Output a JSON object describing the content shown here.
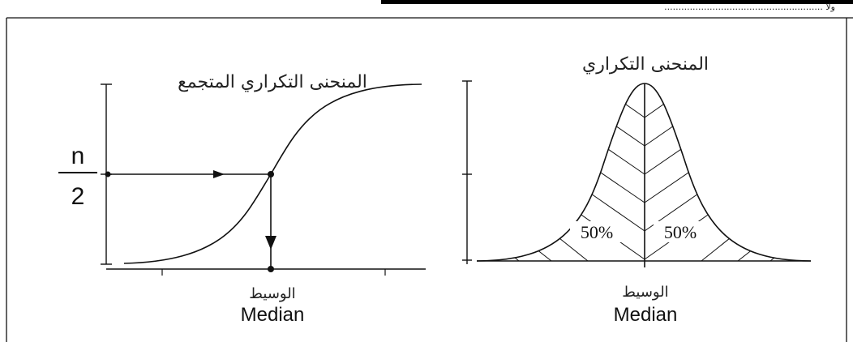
{
  "header": {
    "text": "........................................................ ولا"
  },
  "left_panel": {
    "title": "المنحنى التكراري المتجمع",
    "fraction_numerator": "n",
    "fraction_denominator": "2",
    "x_label_ar": "الوسيط",
    "x_label_en": "Median"
  },
  "right_panel": {
    "title": "المنحنى التكراري",
    "left_percent": "50%",
    "right_percent": "50%",
    "x_label_ar": "الوسيط",
    "x_label_en": "Median"
  },
  "colors": {
    "ink": "#111111",
    "header_bar": "#000000"
  }
}
